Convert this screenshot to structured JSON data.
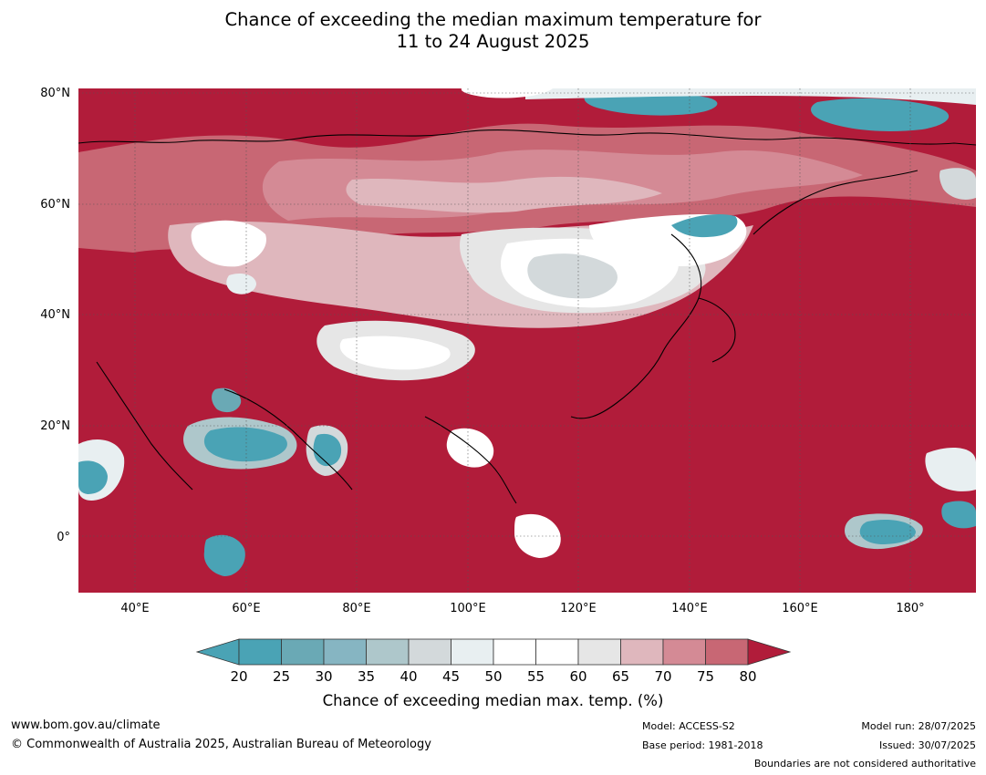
{
  "title": {
    "line1": "Chance of exceeding the median maximum temperature for",
    "line2": "11 to 24 August 2025"
  },
  "map": {
    "region": "Asia / Indian Ocean / Western Pacific",
    "lat_labels": [
      "80°N",
      "60°N",
      "40°N",
      "20°N",
      "0°"
    ],
    "lon_labels": [
      "40°E",
      "60°E",
      "80°E",
      "100°E",
      "120°E",
      "140°E",
      "160°E",
      "180°"
    ],
    "colors": {
      "c20": "#4aa3b5",
      "c25": "#6aa9b5",
      "c30": "#86b5c2",
      "c35": "#aec7cb",
      "c40": "#d3d9db",
      "c45": "#e8eff1",
      "c50": "#ffffff",
      "c55": "#ffffff",
      "c60": "#e6e6e6",
      "c65": "#dfb7bd",
      "c70": "#d48a95",
      "c75": "#c86774",
      "c80": "#b53f51",
      "c80plus": "#b11c3a"
    }
  },
  "colorbar": {
    "ticks": [
      "20",
      "25",
      "30",
      "35",
      "40",
      "45",
      "50",
      "55",
      "60",
      "65",
      "70",
      "75",
      "80"
    ],
    "label": "Chance of exceeding median max. temp. (%)"
  },
  "footer": {
    "website": "www.bom.gov.au/climate",
    "copyright": "© Commonwealth of Australia 2025, Australian Bureau of Meteorology",
    "model": "Model: ACCESS-S2",
    "base_period": "Base period: 1981-2018",
    "model_run": "Model run: 28/07/2025",
    "issued": "Issued: 30/07/2025",
    "disclaimer": "Boundaries are not considered authoritative"
  }
}
